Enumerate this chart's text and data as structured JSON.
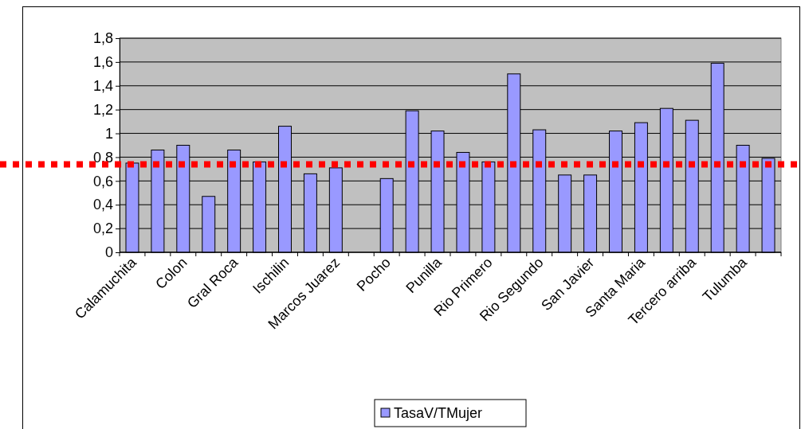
{
  "chart_data": {
    "type": "bar",
    "categories": [
      "Calamuchita",
      null,
      "Colon",
      null,
      "Gral Roca",
      null,
      "Ischilin",
      null,
      "Marcos Juarez",
      null,
      "Pocho",
      null,
      "Punilla",
      null,
      "Rio Primero",
      null,
      "Rio Segundo",
      null,
      "San Javier",
      null,
      "Santa Maria",
      null,
      "Tercero arriba",
      null,
      "Tulumba",
      null
    ],
    "series": [
      {
        "name": "TasaV/TMujer",
        "color": "#9999ff",
        "values": [
          0.75,
          0.86,
          0.9,
          0.47,
          0.86,
          0.76,
          1.06,
          0.66,
          0.71,
          null,
          0.62,
          1.19,
          1.02,
          0.84,
          0.76,
          1.5,
          1.03,
          0.65,
          0.65,
          1.02,
          1.09,
          1.21,
          1.11,
          1.59,
          0.9,
          0.79
        ]
      }
    ],
    "ylim": [
      0,
      1.8
    ],
    "yticks": [
      0,
      {
        "value": 0.2,
        "label": "0,2"
      },
      {
        "value": 0.4,
        "label": "0,4"
      },
      {
        "value": 0.6,
        "label": "0,6"
      },
      {
        "value": 0.8,
        "label": "0,8"
      },
      1,
      {
        "value": 1.2,
        "label": "1,2"
      },
      {
        "value": 1.4,
        "label": "1,4"
      },
      {
        "value": 1.6,
        "label": "1,6"
      },
      {
        "value": 1.8,
        "label": "1,8"
      }
    ],
    "grid": "y",
    "legend": "bottom",
    "ref_lines": [
      {
        "axis": "y",
        "value": 0.74,
        "color": "#ff0000",
        "line_style": "dotted"
      }
    ]
  }
}
